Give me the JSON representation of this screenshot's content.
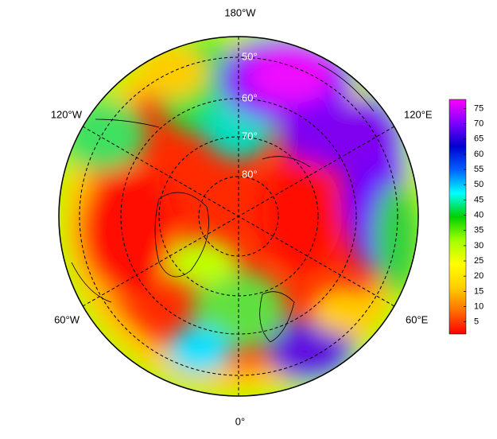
{
  "map": {
    "lon_labels": [
      "180°W",
      "120°E",
      "60°E",
      "0°",
      "60°W",
      "120°W"
    ],
    "lat_labels": [
      "50°",
      "60°",
      "70°",
      "80°"
    ]
  },
  "colorbar": {
    "lim": [
      1,
      78
    ],
    "ticks": [
      5,
      10,
      15,
      20,
      25,
      30,
      35,
      40,
      45,
      50,
      55,
      60,
      65,
      70,
      75
    ],
    "colors": [
      "#ff0000",
      "#ff7000",
      "#ffd000",
      "#ffff00",
      "#a0ff00",
      "#00d000",
      "#00ffff",
      "#0060ff",
      "#0000d0",
      "#8000ff",
      "#ff00ff"
    ]
  }
}
